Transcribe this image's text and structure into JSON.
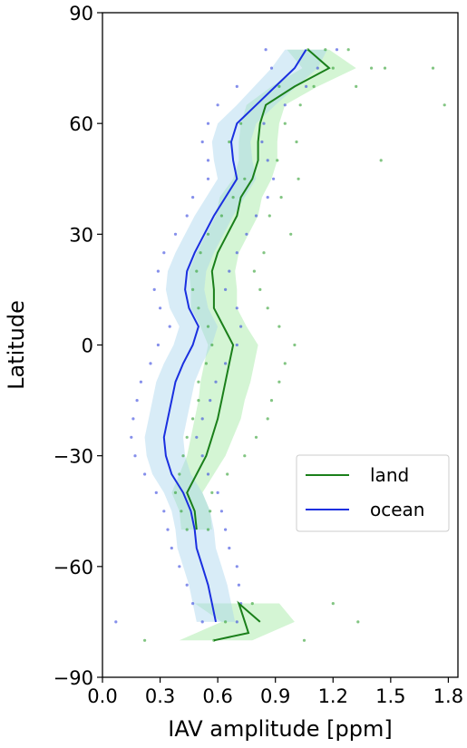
{
  "chart_data": {
    "type": "line",
    "title": "",
    "xlabel": "IAV amplitude [ppm]",
    "ylabel": "Latitude",
    "xlim": [
      0.0,
      1.85
    ],
    "ylim": [
      -90,
      90
    ],
    "x_ticks": [
      "0.0",
      "0.3",
      "0.6",
      "0.9",
      "1.2",
      "1.5",
      "1.8"
    ],
    "y_ticks": [
      "90",
      "60",
      "30",
      "0",
      "−30",
      "−60",
      "−90"
    ],
    "grid": false,
    "legend": {
      "position": "lower-right",
      "entries": [
        "land",
        "ocean"
      ]
    },
    "series": [
      {
        "name": "land",
        "color": "#1a7f1a",
        "band_color": "#9fe89f",
        "points": [
          [
            1.07,
            80
          ],
          [
            1.18,
            75
          ],
          [
            1.0,
            70
          ],
          [
            0.85,
            65
          ],
          [
            0.82,
            60
          ],
          [
            0.81,
            55
          ],
          [
            0.81,
            50
          ],
          [
            0.78,
            45
          ],
          [
            0.72,
            40
          ],
          [
            0.7,
            35
          ],
          [
            0.65,
            30
          ],
          [
            0.6,
            25
          ],
          [
            0.57,
            20
          ],
          [
            0.58,
            15
          ],
          [
            0.58,
            10
          ],
          [
            0.63,
            5
          ],
          [
            0.68,
            0
          ],
          [
            0.66,
            -5
          ],
          [
            0.64,
            -10
          ],
          [
            0.62,
            -15
          ],
          [
            0.6,
            -20
          ],
          [
            0.57,
            -25
          ],
          [
            0.54,
            -30
          ],
          [
            0.49,
            -35
          ],
          [
            0.44,
            -40
          ],
          [
            0.48,
            -45
          ],
          [
            0.49,
            -50
          ]
        ],
        "points_south": [
          [
            0.82,
            -75
          ],
          [
            0.71,
            -70
          ],
          [
            0.76,
            -78
          ],
          [
            0.58,
            -80
          ]
        ],
        "band_half_width": [
          0.11,
          0.14,
          0.12,
          0.1,
          0.1,
          0.1,
          0.1,
          0.1,
          0.11,
          0.11,
          0.11,
          0.11,
          0.12,
          0.12,
          0.12,
          0.12,
          0.13,
          0.13,
          0.13,
          0.12,
          0.12,
          0.11,
          0.1,
          0.09,
          0.08,
          0.08,
          0.08
        ]
      },
      {
        "name": "ocean",
        "color": "#1a2fe0",
        "band_color": "#a8d4ee",
        "points": [
          [
            1.06,
            80
          ],
          [
            1.0,
            75
          ],
          [
            0.9,
            70
          ],
          [
            0.8,
            65
          ],
          [
            0.7,
            60
          ],
          [
            0.67,
            55
          ],
          [
            0.68,
            50
          ],
          [
            0.7,
            45
          ],
          [
            0.64,
            40
          ],
          [
            0.58,
            35
          ],
          [
            0.53,
            30
          ],
          [
            0.48,
            25
          ],
          [
            0.44,
            20
          ],
          [
            0.43,
            15
          ],
          [
            0.45,
            10
          ],
          [
            0.5,
            5
          ],
          [
            0.47,
            0
          ],
          [
            0.42,
            -5
          ],
          [
            0.38,
            -10
          ],
          [
            0.36,
            -15
          ],
          [
            0.34,
            -20
          ],
          [
            0.32,
            -25
          ],
          [
            0.33,
            -30
          ],
          [
            0.36,
            -35
          ],
          [
            0.42,
            -40
          ],
          [
            0.46,
            -45
          ],
          [
            0.48,
            -50
          ],
          [
            0.49,
            -55
          ],
          [
            0.52,
            -60
          ],
          [
            0.55,
            -65
          ],
          [
            0.57,
            -70
          ],
          [
            0.59,
            -75
          ]
        ],
        "band_half_width": [
          0.11,
          0.12,
          0.11,
          0.1,
          0.1,
          0.1,
          0.1,
          0.1,
          0.1,
          0.1,
          0.1,
          0.1,
          0.1,
          0.1,
          0.1,
          0.1,
          0.1,
          0.1,
          0.1,
          0.1,
          0.1,
          0.1,
          0.1,
          0.1,
          0.1,
          0.1,
          0.1,
          0.1,
          0.1,
          0.1,
          0.1,
          0.1
        ]
      }
    ],
    "scatter_land": [
      [
        1.07,
        80
      ],
      [
        1.16,
        80
      ],
      [
        1.28,
        80
      ],
      [
        1.4,
        75
      ],
      [
        1.72,
        75
      ],
      [
        1.2,
        75
      ],
      [
        1.47,
        75
      ],
      [
        0.92,
        70
      ],
      [
        1.1,
        70
      ],
      [
        1.32,
        70
      ],
      [
        1.78,
        65
      ],
      [
        1.03,
        65
      ],
      [
        0.72,
        60
      ],
      [
        0.95,
        60
      ],
      [
        0.66,
        55
      ],
      [
        1.01,
        55
      ],
      [
        1.45,
        50
      ],
      [
        0.91,
        50
      ],
      [
        0.74,
        45
      ],
      [
        1.02,
        45
      ],
      [
        0.68,
        40
      ],
      [
        0.93,
        40
      ],
      [
        0.62,
        35
      ],
      [
        0.87,
        35
      ],
      [
        0.55,
        30
      ],
      [
        0.98,
        30
      ],
      [
        0.51,
        25
      ],
      [
        0.84,
        25
      ],
      [
        0.49,
        20
      ],
      [
        0.79,
        20
      ],
      [
        0.47,
        15
      ],
      [
        0.82,
        15
      ],
      [
        0.5,
        10
      ],
      [
        0.86,
        10
      ],
      [
        0.55,
        5
      ],
      [
        0.92,
        5
      ],
      [
        0.57,
        0
      ],
      [
        1.0,
        0
      ],
      [
        0.54,
        -5
      ],
      [
        0.95,
        -5
      ],
      [
        0.5,
        -10
      ],
      [
        0.92,
        -10
      ],
      [
        0.5,
        -15
      ],
      [
        0.88,
        -15
      ],
      [
        0.47,
        -20
      ],
      [
        0.86,
        -20
      ],
      [
        0.44,
        -25
      ],
      [
        0.8,
        -25
      ],
      [
        0.42,
        -30
      ],
      [
        0.74,
        -30
      ],
      [
        0.4,
        -35
      ],
      [
        0.65,
        -35
      ],
      [
        0.38,
        -40
      ],
      [
        0.57,
        -40
      ],
      [
        0.41,
        -45
      ],
      [
        0.56,
        -45
      ],
      [
        0.44,
        -50
      ],
      [
        0.55,
        -50
      ],
      [
        0.78,
        -70
      ],
      [
        1.2,
        -70
      ],
      [
        0.64,
        -75
      ],
      [
        1.33,
        -75
      ],
      [
        0.22,
        -80
      ],
      [
        0.58,
        -80
      ],
      [
        1.05,
        -80
      ]
    ],
    "scatter_ocean": [
      [
        0.85,
        80
      ],
      [
        1.22,
        80
      ],
      [
        0.88,
        75
      ],
      [
        1.12,
        75
      ],
      [
        0.7,
        70
      ],
      [
        1.06,
        70
      ],
      [
        0.6,
        65
      ],
      [
        0.95,
        65
      ],
      [
        0.55,
        60
      ],
      [
        0.84,
        60
      ],
      [
        0.52,
        55
      ],
      [
        0.83,
        55
      ],
      [
        0.55,
        50
      ],
      [
        0.86,
        50
      ],
      [
        0.55,
        45
      ],
      [
        0.89,
        45
      ],
      [
        0.47,
        40
      ],
      [
        0.86,
        40
      ],
      [
        0.44,
        35
      ],
      [
        0.8,
        35
      ],
      [
        0.38,
        30
      ],
      [
        0.75,
        30
      ],
      [
        0.32,
        25
      ],
      [
        0.7,
        25
      ],
      [
        0.29,
        20
      ],
      [
        0.66,
        20
      ],
      [
        0.27,
        15
      ],
      [
        0.64,
        15
      ],
      [
        0.3,
        10
      ],
      [
        0.7,
        10
      ],
      [
        0.35,
        5
      ],
      [
        0.72,
        5
      ],
      [
        0.29,
        0
      ],
      [
        0.7,
        0
      ],
      [
        0.25,
        -5
      ],
      [
        0.64,
        -5
      ],
      [
        0.2,
        -10
      ],
      [
        0.59,
        -10
      ],
      [
        0.18,
        -15
      ],
      [
        0.56,
        -15
      ],
      [
        0.16,
        -20
      ],
      [
        0.52,
        -20
      ],
      [
        0.15,
        -25
      ],
      [
        0.49,
        -25
      ],
      [
        0.17,
        -30
      ],
      [
        0.52,
        -30
      ],
      [
        0.22,
        -35
      ],
      [
        0.55,
        -35
      ],
      [
        0.28,
        -40
      ],
      [
        0.6,
        -40
      ],
      [
        0.32,
        -45
      ],
      [
        0.62,
        -45
      ],
      [
        0.34,
        -50
      ],
      [
        0.64,
        -50
      ],
      [
        0.36,
        -55
      ],
      [
        0.66,
        -55
      ],
      [
        0.4,
        -60
      ],
      [
        0.7,
        -60
      ],
      [
        0.44,
        -65
      ],
      [
        0.71,
        -65
      ],
      [
        0.47,
        -70
      ],
      [
        0.72,
        -70
      ],
      [
        0.07,
        -75
      ],
      [
        0.52,
        -75
      ],
      [
        0.7,
        -75
      ]
    ]
  }
}
